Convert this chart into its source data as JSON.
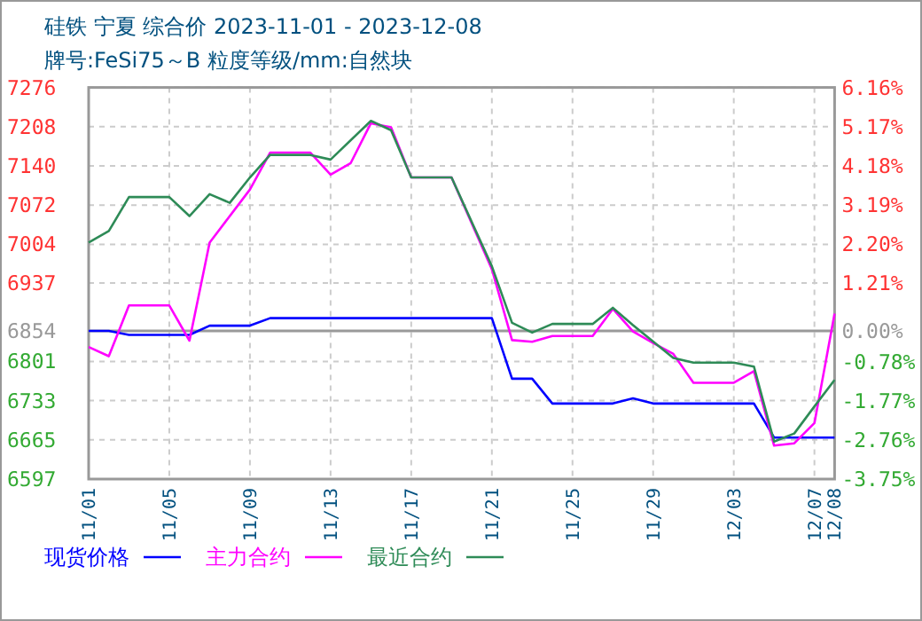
{
  "chart_data": {
    "type": "line",
    "title": "硅铁  宁夏  综合价  2023-11-01 - 2023-12-08",
    "subtitle": "牌号:FeSi75～B 粒度等级/mm:自然块",
    "series": [
      {
        "name": "现货价格",
        "color": "#0000ff",
        "x": [
          "2023-11-01",
          "2023-11-02",
          "2023-11-03",
          "2023-11-06",
          "2023-11-07",
          "2023-11-09",
          "2023-11-10",
          "2023-11-21",
          "2023-11-22",
          "2023-11-23",
          "2023-11-24",
          "2023-11-27",
          "2023-11-28",
          "2023-11-29",
          "2023-12-04",
          "2023-12-05",
          "2023-12-08"
        ],
        "values": [
          6854,
          6854,
          6847,
          6847,
          6863,
          6863,
          6876,
          6876,
          6771,
          6771,
          6728,
          6728,
          6737,
          6728,
          6728,
          6669,
          6669
        ]
      },
      {
        "name": "主力合约",
        "color": "#ff00ff",
        "x": [
          "2023-11-01",
          "2023-11-02",
          "2023-11-03",
          "2023-11-05",
          "2023-11-06",
          "2023-11-07",
          "2023-11-09",
          "2023-11-10",
          "2023-11-12",
          "2023-11-13",
          "2023-11-14",
          "2023-11-15",
          "2023-11-16",
          "2023-11-17",
          "2023-11-19",
          "2023-11-21",
          "2023-11-22",
          "2023-11-23",
          "2023-11-24",
          "2023-11-26",
          "2023-11-27",
          "2023-11-28",
          "2023-11-29",
          "2023-11-30",
          "2023-12-01",
          "2023-12-03",
          "2023-12-04",
          "2023-12-05",
          "2023-12-06",
          "2023-12-07",
          "2023-12-08"
        ],
        "values": [
          6826,
          6810,
          6898,
          6898,
          6837,
          7007,
          7099,
          7163,
          7163,
          7125,
          7145,
          7214,
          7207,
          7120,
          7120,
          6961,
          6838,
          6835,
          6845,
          6845,
          6892,
          6853,
          6833,
          6814,
          6764,
          6764,
          6784,
          6655,
          6659,
          6694,
          6884
        ]
      },
      {
        "name": "最近合约",
        "color": "#2e8b57",
        "x": [
          "2023-11-01",
          "2023-11-02",
          "2023-11-03",
          "2023-11-05",
          "2023-11-06",
          "2023-11-07",
          "2023-11-08",
          "2023-11-09",
          "2023-11-10",
          "2023-11-12",
          "2023-11-13",
          "2023-11-15",
          "2023-11-16",
          "2023-11-17",
          "2023-11-19",
          "2023-11-21",
          "2023-11-22",
          "2023-11-23",
          "2023-11-24",
          "2023-11-26",
          "2023-11-27",
          "2023-11-28",
          "2023-11-30",
          "2023-12-01",
          "2023-12-03",
          "2023-12-04",
          "2023-12-05",
          "2023-12-06",
          "2023-12-07",
          "2023-12-08"
        ],
        "values": [
          7007,
          7027,
          7086,
          7086,
          7053,
          7091,
          7076,
          7120,
          7159,
          7159,
          7151,
          7218,
          7202,
          7120,
          7120,
          6966,
          6868,
          6851,
          6866,
          6866,
          6894,
          6864,
          6807,
          6799,
          6799,
          6792,
          6662,
          6676,
          6723,
          6769
        ]
      }
    ],
    "xlim": [
      "2023-11-01",
      "2023-12-08"
    ],
    "xticks": [
      {
        "value": "2023-11-01",
        "label": "11/01"
      },
      {
        "value": "2023-11-05",
        "label": "11/05"
      },
      {
        "value": "2023-11-09",
        "label": "11/09"
      },
      {
        "value": "2023-11-13",
        "label": "11/13"
      },
      {
        "value": "2023-11-17",
        "label": "11/17"
      },
      {
        "value": "2023-11-21",
        "label": "11/21"
      },
      {
        "value": "2023-11-25",
        "label": "11/25"
      },
      {
        "value": "2023-11-29",
        "label": "11/29"
      },
      {
        "value": "2023-12-03",
        "label": "12/03"
      },
      {
        "value": "2023-12-07",
        "label": "12/07"
      },
      {
        "value": "2023-12-08",
        "label": "12/08"
      }
    ],
    "ylim": [
      6597,
      7276
    ],
    "yticks": [
      6597,
      6665,
      6733,
      6801,
      6854,
      6937,
      7004,
      7072,
      7140,
      7208,
      7276
    ],
    "y2lim": [
      -3.75,
      6.16
    ],
    "y2ticks": [
      {
        "value": -3.75,
        "label": "-3.75%"
      },
      {
        "value": -2.76,
        "label": "-2.76%"
      },
      {
        "value": -1.77,
        "label": "-1.77%"
      },
      {
        "value": -0.78,
        "label": "-0.78%"
      },
      {
        "value": 0,
        "label": "0.00%"
      },
      {
        "value": 1.21,
        "label": "1.21%"
      },
      {
        "value": 2.2,
        "label": "2.20%"
      },
      {
        "value": 3.19,
        "label": "3.19%"
      },
      {
        "value": 4.18,
        "label": "4.18%"
      },
      {
        "value": 5.17,
        "label": "5.17%"
      },
      {
        "value": 6.16,
        "label": "6.16%"
      }
    ],
    "ref_lines": [
      {
        "axis": "y",
        "value": 6854,
        "color": "#999999"
      }
    ],
    "grid": true,
    "legend": "bottom"
  }
}
